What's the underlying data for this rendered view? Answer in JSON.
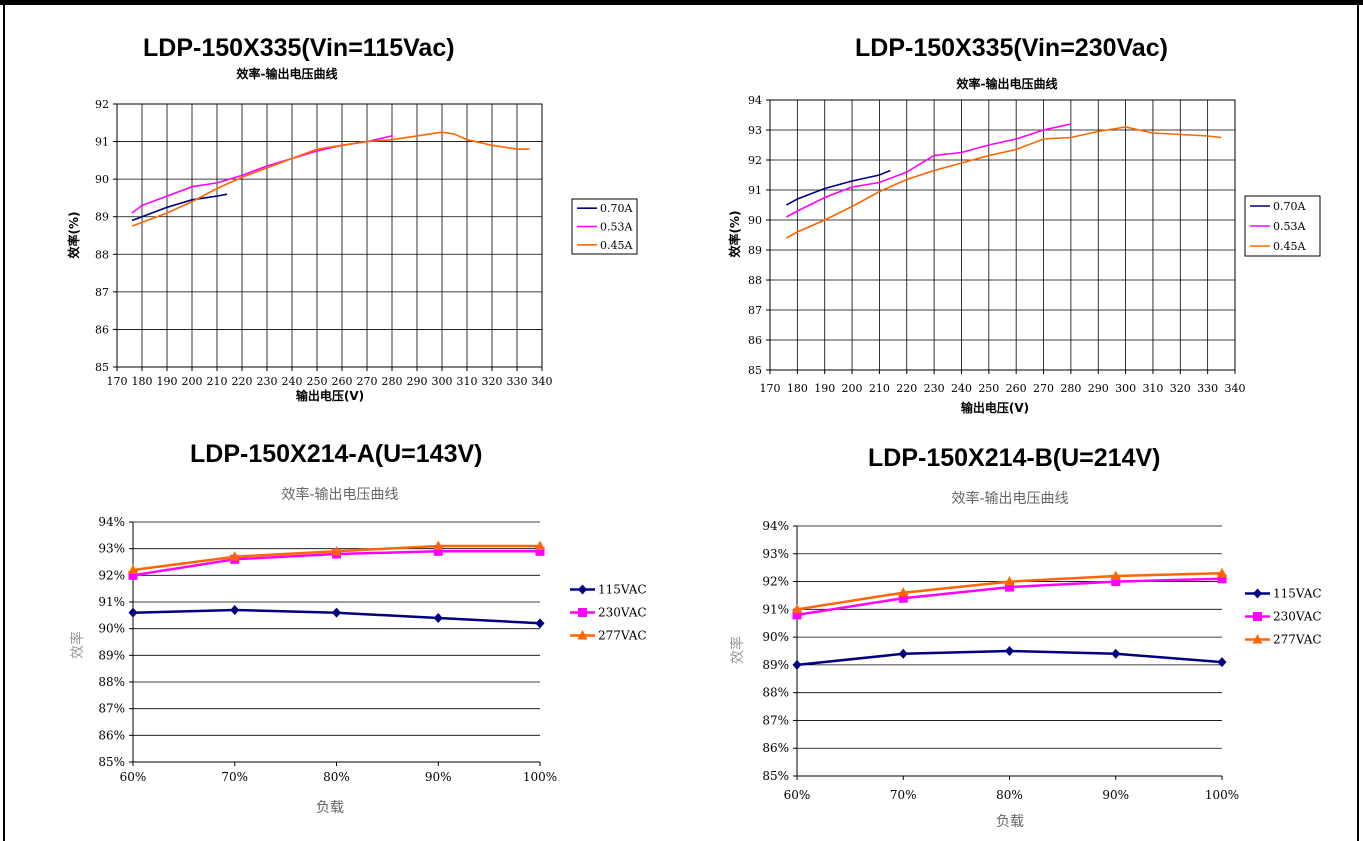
{
  "panels": [
    {
      "id": "p1",
      "title": "LDP-150X335(Vin=115Vac)"
    },
    {
      "id": "p2",
      "title": "LDP-150X335(Vin=230Vac)"
    },
    {
      "id": "p3",
      "title": "LDP-150X214-A(U=143V)"
    },
    {
      "id": "p4",
      "title": "LDP-150X214-B(U=214V)"
    }
  ],
  "chart_data": [
    {
      "type": "line",
      "title": "效率-输出电压曲线",
      "xlabel": "输出电压(V)",
      "ylabel": "效率(%)",
      "xlim": [
        170,
        340
      ],
      "ylim": [
        85,
        92
      ],
      "xticks": [
        "170",
        "180",
        "190",
        "200",
        "210",
        "220",
        "230",
        "240",
        "250",
        "260",
        "270",
        "280",
        "290",
        "300",
        "310",
        "320",
        "330",
        "340"
      ],
      "yticks": [
        "85",
        "86",
        "87",
        "88",
        "89",
        "90",
        "91",
        "92"
      ],
      "grid": true,
      "legend": "right",
      "series": [
        {
          "name": "0.70A",
          "color": "#000080",
          "x": [
            176,
            180,
            190,
            200,
            210,
            214
          ],
          "y": [
            88.9,
            89.0,
            89.25,
            89.45,
            89.55,
            89.6
          ]
        },
        {
          "name": "0.53A",
          "color": "#ff00ff",
          "x": [
            176,
            180,
            190,
            200,
            210,
            220,
            230,
            240,
            250,
            260,
            270,
            280
          ],
          "y": [
            89.1,
            89.3,
            89.55,
            89.8,
            89.9,
            90.1,
            90.35,
            90.55,
            90.75,
            90.9,
            91.0,
            91.15
          ]
        },
        {
          "name": "0.45A",
          "color": "#ff6600",
          "x": [
            176,
            180,
            190,
            200,
            210,
            220,
            230,
            240,
            250,
            260,
            270,
            280,
            290,
            300,
            305,
            310,
            320,
            330,
            335
          ],
          "y": [
            88.75,
            88.85,
            89.1,
            89.4,
            89.75,
            90.05,
            90.3,
            90.55,
            90.8,
            90.9,
            91.0,
            91.05,
            91.15,
            91.25,
            91.2,
            91.05,
            90.9,
            90.8,
            90.8
          ]
        }
      ]
    },
    {
      "type": "line",
      "title": "效率-输出电压曲线",
      "xlabel": "输出电压(V)",
      "ylabel": "效率(%)",
      "xlim": [
        170,
        340
      ],
      "ylim": [
        85,
        94
      ],
      "xticks": [
        "170",
        "180",
        "190",
        "200",
        "210",
        "220",
        "230",
        "240",
        "250",
        "260",
        "270",
        "280",
        "290",
        "300",
        "310",
        "320",
        "330",
        "340"
      ],
      "yticks": [
        "85",
        "86",
        "87",
        "88",
        "89",
        "90",
        "91",
        "92",
        "93",
        "94"
      ],
      "grid": true,
      "legend": "right",
      "series": [
        {
          "name": "0.70A",
          "color": "#000080",
          "x": [
            176,
            180,
            190,
            200,
            210,
            214
          ],
          "y": [
            90.5,
            90.7,
            91.05,
            91.3,
            91.5,
            91.65
          ]
        },
        {
          "name": "0.53A",
          "color": "#ff00ff",
          "x": [
            176,
            180,
            190,
            200,
            210,
            220,
            230,
            240,
            250,
            260,
            270,
            280
          ],
          "y": [
            90.1,
            90.3,
            90.75,
            91.1,
            91.25,
            91.6,
            92.15,
            92.25,
            92.5,
            92.7,
            93.0,
            93.2
          ]
        },
        {
          "name": "0.45A",
          "color": "#ff6600",
          "x": [
            176,
            180,
            190,
            200,
            210,
            220,
            230,
            240,
            250,
            260,
            270,
            280,
            290,
            300,
            310,
            320,
            330,
            335
          ],
          "y": [
            89.4,
            89.6,
            90.0,
            90.45,
            90.95,
            91.35,
            91.65,
            91.9,
            92.15,
            92.35,
            92.7,
            92.75,
            92.95,
            93.1,
            92.9,
            92.85,
            92.8,
            92.75
          ]
        }
      ]
    },
    {
      "type": "line",
      "title": "效率-输出电压曲线",
      "xlabel": "负载",
      "ylabel": "效率",
      "categories": [
        "60%",
        "70%",
        "80%",
        "90%",
        "100%"
      ],
      "yticks": [
        "85%",
        "86%",
        "87%",
        "88%",
        "89%",
        "90%",
        "91%",
        "92%",
        "93%",
        "94%"
      ],
      "ylim": [
        85,
        94
      ],
      "grid": true,
      "legend": "right",
      "series": [
        {
          "name": "115VAC",
          "color": "#000080",
          "marker": "diamond",
          "values": [
            90.6,
            90.7,
            90.6,
            90.4,
            90.2
          ]
        },
        {
          "name": "230VAC",
          "color": "#ff00ff",
          "marker": "square",
          "values": [
            92.0,
            92.6,
            92.8,
            92.9,
            92.9
          ]
        },
        {
          "name": "277VAC",
          "color": "#ff6600",
          "marker": "triangle",
          "values": [
            92.2,
            92.7,
            92.9,
            93.1,
            93.1
          ]
        }
      ]
    },
    {
      "type": "line",
      "title": "效率-输出电压曲线",
      "xlabel": "负载",
      "ylabel": "效率",
      "categories": [
        "60%",
        "70%",
        "80%",
        "90%",
        "100%"
      ],
      "yticks": [
        "85%",
        "86%",
        "87%",
        "88%",
        "89%",
        "90%",
        "91%",
        "92%",
        "93%",
        "94%"
      ],
      "ylim": [
        85,
        94
      ],
      "grid": true,
      "legend": "right",
      "series": [
        {
          "name": "115VAC",
          "color": "#000080",
          "marker": "diamond",
          "values": [
            89.0,
            89.4,
            89.5,
            89.4,
            89.1
          ]
        },
        {
          "name": "230VAC",
          "color": "#ff00ff",
          "marker": "square",
          "values": [
            90.8,
            91.4,
            91.8,
            92.0,
            92.1
          ]
        },
        {
          "name": "277VAC",
          "color": "#ff6600",
          "marker": "triangle",
          "values": [
            91.0,
            91.6,
            92.0,
            92.2,
            92.3
          ]
        }
      ]
    }
  ]
}
